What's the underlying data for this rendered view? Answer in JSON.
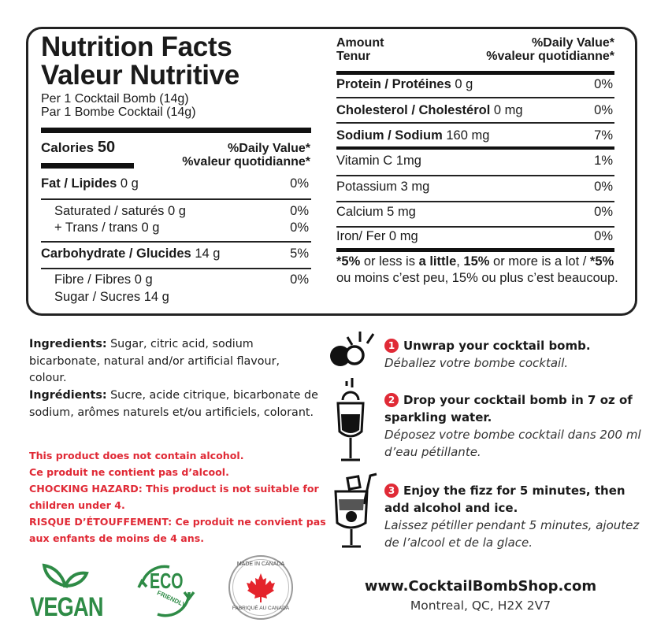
{
  "left": {
    "title_en": "Nutrition Facts",
    "title_fr": "Valeur Nutritive",
    "serving_en": "Per 1 Cocktail Bomb (14g)",
    "serving_fr": "Par 1 Bombe Cocktail (14g)",
    "calories_label": "Calories",
    "calories_value": "50",
    "dv_en": "%Daily Value*",
    "dv_fr": "%valeur quotidianne*",
    "rows": [
      {
        "label": "Fat / Lipides",
        "amount": "0 g",
        "dv": "0%"
      },
      {
        "label": "Saturated / saturés 0 g",
        "dv": "0%"
      },
      {
        "label": "+ Trans / trans 0 g",
        "dv": "0%"
      },
      {
        "label": "Carbohydrate / Glucides",
        "amount": "14 g",
        "dv": "5%"
      },
      {
        "label": "Fibre / Fibres 0 g",
        "dv": "0%"
      },
      {
        "label": "Sugar / Sucres 14 g"
      }
    ]
  },
  "right": {
    "amount_en": "Amount",
    "amount_fr": "Tenur",
    "dv_en": "%Daily Value*",
    "dv_fr": "%valeur quotidianne*",
    "rows": [
      {
        "label": "Protein / Protéines",
        "amount": "0 g",
        "dv": "0%"
      },
      {
        "label": "Cholesterol / Cholestérol",
        "amount": "0 mg",
        "dv": "0%"
      },
      {
        "label": "Sodium / Sodium",
        "amount": "160 mg",
        "dv": "7%"
      },
      {
        "label": "Vitamin C 1mg",
        "dv": "1%"
      },
      {
        "label": "Potassium 3 mg",
        "dv": "0%"
      },
      {
        "label": "Calcium 5 mg",
        "dv": "0%"
      },
      {
        "label": "Iron/ Fer 0 mg",
        "dv": "0%"
      }
    ],
    "footnote": {
      "p1": "*5%",
      "p2": " or less is ",
      "p3": "a little",
      "p4": ", ",
      "p5": "15%",
      "p6": " or more is a lot / ",
      "p7": "*5%",
      "p8": " ou moins c’est peu, 15% ou plus c’est beaucoup."
    }
  },
  "ingredients": {
    "en_label": "Ingredients:",
    "en_text": " Sugar, citric acid, sodium bicarbonate, natural and/or artificial flavour, colour.",
    "fr_label": "Ingrédients:",
    "fr_text": " Sucre, acide citrique, bicarbonate de sodium, arômes naturels et/ou artificiels, colorant."
  },
  "warnings": [
    "This product does not contain alcohol.",
    "Ce produit ne contient pas d’alcool.",
    "CHOCKING HAZARD: This product is not suitable for children under 4.",
    "RISQUE D’ÉTOUFFEMENT: Ce produit ne convient pas aux enfants de moins de 4 ans."
  ],
  "logos": {
    "vegan": "VEGAN",
    "eco": "ECO",
    "eco_sub": "FRIENDLY",
    "canada_top": "MADE IN CANADA",
    "canada_bottom": "FABRIQUÉ AU CANADA"
  },
  "steps": [
    {
      "num": "1",
      "en": "Unwrap your cocktail bomb.",
      "fr": "Déballez votre bombe cocktail.",
      "icon": "unwrap-bomb-icon"
    },
    {
      "num": "2",
      "en": "Drop your cocktail bomb in 7 oz of sparkling water.",
      "fr": "Déposez votre bombe cocktail dans 200 ml d’eau pétillante.",
      "icon": "drop-in-glass-icon"
    },
    {
      "num": "3",
      "en": "Enjoy the fizz for 5 minutes, then add alcohol and ice.",
      "fr": "Laissez pétiller pendant 5 minutes, ajoutez de l’alcool et de la glace.",
      "icon": "cocktail-glass-icon"
    }
  ],
  "footer": {
    "url": "www.CocktailBombShop.com",
    "address": "Montreal, QC, H2X 2V7"
  },
  "colors": {
    "warning_red": "#e02a36",
    "logo_green": "#2e8b46",
    "maple_red": "#e4232b"
  }
}
